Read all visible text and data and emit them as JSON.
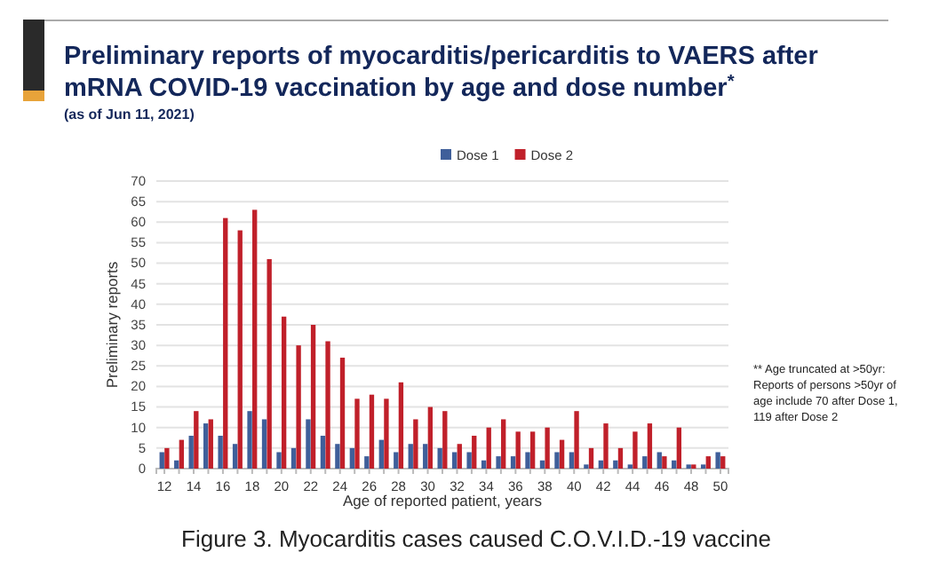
{
  "chart_data": {
    "type": "bar",
    "title": "Preliminary reports of myocarditis/pericarditis to VAERS after mRNA COVID-19 vaccination by age and dose number$^{*}$",
    "subtitle": "(as of Jun 11, 2021)",
    "xlabel": "Age of reported patient, years",
    "ylabel": "Preliminary reports",
    "categories": [
      "12",
      null,
      "14",
      null,
      "16",
      null,
      "18",
      null,
      "20",
      null,
      "22",
      null,
      "24",
      null,
      "26",
      null,
      "28",
      null,
      "30",
      null,
      "32",
      null,
      "34",
      null,
      "36",
      null,
      "38",
      null,
      "40",
      null,
      "42",
      null,
      "44",
      null,
      "46",
      null,
      "48",
      null,
      "50"
    ],
    "series": [
      {
        "name": "Dose 1",
        "color": "#3f5f9a",
        "values": [
          4,
          2,
          8,
          11,
          8,
          6,
          14,
          12,
          4,
          5,
          12,
          8,
          6,
          5,
          3,
          7,
          4,
          6,
          6,
          5,
          4,
          4,
          2,
          3,
          3,
          4,
          2,
          4,
          4,
          1,
          2,
          2,
          1,
          3,
          4,
          2,
          1,
          1,
          4
        ]
      },
      {
        "name": "Dose 2",
        "color": "#c0202a",
        "values": [
          5,
          7,
          14,
          12,
          61,
          58,
          63,
          51,
          37,
          30,
          35,
          31,
          27,
          17,
          18,
          17,
          21,
          12,
          15,
          14,
          6,
          8,
          10,
          12,
          9,
          9,
          10,
          7,
          14,
          5,
          11,
          5,
          9,
          11,
          3,
          10,
          1,
          3,
          3
        ]
      }
    ],
    "ylim": [
      0,
      70
    ],
    "yticks": [
      0,
      5,
      10,
      15,
      20,
      25,
      30,
      35,
      40,
      45,
      50,
      55,
      60,
      65,
      70
    ],
    "grid": "y",
    "legend": "top",
    "annotations": [
      "** Age truncated at >50yr: Reports of persons >50yr of age include 70 after Dose 1, 119 after Dose 2",
      "Figure 3. Myocarditis cases caused C.O.V.I.D.-19 vaccine"
    ]
  }
}
